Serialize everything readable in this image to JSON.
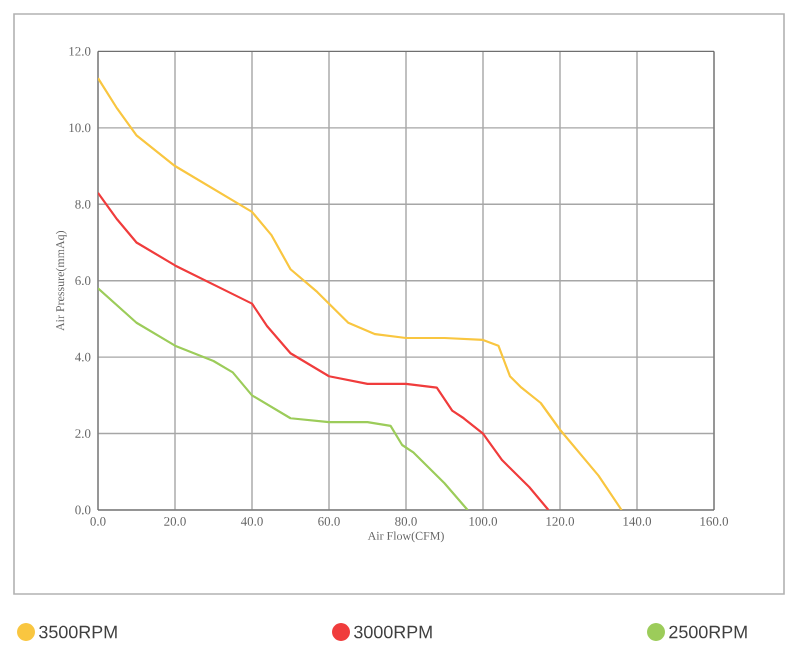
{
  "chart_data": {
    "type": "line",
    "xlabel": "Air Flow(CFM)",
    "ylabel": "Air Pressure(mmAq)",
    "xlim": [
      0,
      160
    ],
    "ylim": [
      0,
      12
    ],
    "xticks": [
      {
        "value": 0,
        "label": "0.0"
      },
      {
        "value": 20,
        "label": "20.0"
      },
      {
        "value": 40,
        "label": "40.0"
      },
      {
        "value": 60,
        "label": "60.0"
      },
      {
        "value": 80,
        "label": "80.0"
      },
      {
        "value": 100,
        "label": "100.0"
      },
      {
        "value": 120,
        "label": "120.0"
      },
      {
        "value": 140,
        "label": "140.0"
      },
      {
        "value": 160,
        "label": "160.0"
      }
    ],
    "yticks": [
      {
        "value": 0,
        "label": "0.0"
      },
      {
        "value": 2,
        "label": "2.0"
      },
      {
        "value": 4,
        "label": "4.0"
      },
      {
        "value": 6,
        "label": "6.0"
      },
      {
        "value": 8,
        "label": "8.0"
      },
      {
        "value": 10,
        "label": "10.0"
      },
      {
        "value": 12,
        "label": "12.0"
      }
    ],
    "grid": true,
    "legend": "bottom",
    "marker": "none",
    "line_style": "solid",
    "series": [
      {
        "name": "3500RPM",
        "color": "#f9c640",
        "x": [
          0,
          5,
          10,
          20,
          30,
          40,
          45,
          50,
          57,
          65,
          72,
          80,
          90,
          100,
          104,
          107,
          110,
          115,
          120,
          130,
          136
        ],
        "values": [
          11.3,
          10.5,
          9.8,
          9.0,
          8.4,
          7.8,
          7.2,
          6.3,
          5.7,
          4.9,
          4.6,
          4.5,
          4.5,
          4.45,
          4.3,
          3.5,
          3.2,
          2.8,
          2.1,
          0.9,
          0
        ]
      },
      {
        "name": "3000RPM",
        "color": "#f03c3c",
        "x": [
          0,
          5,
          10,
          20,
          30,
          40,
          44,
          50,
          60,
          70,
          80,
          88,
          92,
          95,
          100,
          105,
          112,
          117
        ],
        "values": [
          8.3,
          7.6,
          7.0,
          6.4,
          5.9,
          5.4,
          4.8,
          4.1,
          3.5,
          3.3,
          3.3,
          3.2,
          2.6,
          2.4,
          2.0,
          1.3,
          0.6,
          0
        ]
      },
      {
        "name": "2500RPM",
        "color": "#9ccc5a",
        "x": [
          0,
          10,
          20,
          30,
          35,
          40,
          50,
          60,
          70,
          76,
          79,
          82,
          90,
          96
        ],
        "values": [
          5.8,
          4.9,
          4.3,
          3.9,
          3.6,
          3.0,
          2.4,
          2.3,
          2.3,
          2.2,
          1.7,
          1.5,
          0.7,
          0
        ]
      }
    ]
  }
}
